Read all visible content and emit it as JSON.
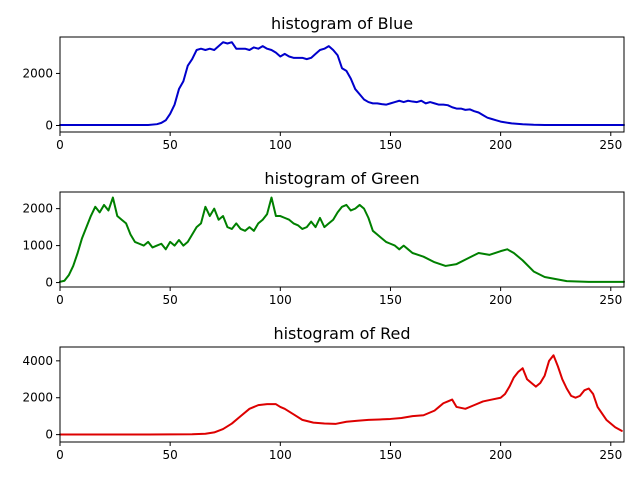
{
  "chart_data": [
    {
      "type": "line",
      "title": "histogram of Blue",
      "color": "#0000cc",
      "xlim": [
        0,
        256
      ],
      "ylim": [
        -250,
        3400
      ],
      "xticks": [
        0,
        50,
        100,
        150,
        200,
        250
      ],
      "yticks": [
        0,
        2000
      ],
      "x": [
        0,
        10,
        20,
        30,
        40,
        44,
        46,
        48,
        50,
        52,
        54,
        56,
        58,
        60,
        62,
        64,
        66,
        68,
        70,
        72,
        74,
        76,
        78,
        80,
        82,
        84,
        86,
        88,
        90,
        92,
        94,
        96,
        98,
        100,
        102,
        104,
        106,
        108,
        110,
        112,
        114,
        116,
        118,
        120,
        122,
        124,
        126,
        128,
        130,
        132,
        134,
        136,
        138,
        140,
        142,
        144,
        146,
        148,
        150,
        152,
        154,
        156,
        158,
        160,
        162,
        164,
        166,
        168,
        170,
        172,
        174,
        176,
        178,
        180,
        182,
        184,
        186,
        188,
        190,
        192,
        194,
        196,
        198,
        200,
        205,
        210,
        215,
        220,
        230,
        240,
        256
      ],
      "values": [
        20,
        20,
        20,
        20,
        20,
        50,
        100,
        200,
        450,
        800,
        1400,
        1700,
        2300,
        2550,
        2900,
        2950,
        2900,
        2950,
        2900,
        3050,
        3200,
        3150,
        3200,
        2950,
        2950,
        2950,
        2900,
        3000,
        2950,
        3050,
        2950,
        2900,
        2800,
        2650,
        2750,
        2650,
        2600,
        2600,
        2600,
        2550,
        2600,
        2750,
        2900,
        2950,
        3050,
        2900,
        2700,
        2200,
        2100,
        1800,
        1400,
        1200,
        1000,
        900,
        850,
        850,
        820,
        800,
        850,
        900,
        950,
        900,
        950,
        920,
        900,
        950,
        850,
        900,
        850,
        800,
        800,
        780,
        700,
        650,
        650,
        600,
        620,
        550,
        500,
        400,
        300,
        250,
        200,
        150,
        80,
        50,
        30,
        20,
        20,
        20,
        20
      ]
    },
    {
      "type": "line",
      "title": "histogram of Green",
      "color": "#008000",
      "xlim": [
        0,
        256
      ],
      "ylim": [
        -120,
        2450
      ],
      "xticks": [
        0,
        50,
        100,
        150,
        200,
        250
      ],
      "yticks": [
        0,
        1000,
        2000
      ],
      "x": [
        0,
        2,
        4,
        6,
        8,
        10,
        12,
        14,
        16,
        18,
        20,
        22,
        24,
        26,
        28,
        30,
        32,
        34,
        36,
        38,
        40,
        42,
        44,
        46,
        48,
        50,
        52,
        54,
        56,
        58,
        60,
        62,
        64,
        66,
        68,
        70,
        72,
        74,
        76,
        78,
        80,
        82,
        84,
        86,
        88,
        90,
        92,
        94,
        96,
        98,
        100,
        102,
        104,
        106,
        108,
        110,
        112,
        114,
        116,
        118,
        120,
        122,
        124,
        126,
        128,
        130,
        132,
        134,
        136,
        138,
        140,
        142,
        144,
        146,
        148,
        150,
        152,
        154,
        156,
        158,
        160,
        165,
        170,
        175,
        180,
        185,
        190,
        195,
        200,
        203,
        206,
        210,
        215,
        220,
        230,
        240,
        256
      ],
      "values": [
        20,
        50,
        200,
        450,
        800,
        1200,
        1500,
        1800,
        2050,
        1900,
        2100,
        1950,
        2300,
        1800,
        1700,
        1600,
        1300,
        1100,
        1050,
        1000,
        1100,
        950,
        1000,
        1050,
        900,
        1100,
        1000,
        1150,
        1000,
        1100,
        1300,
        1500,
        1600,
        2050,
        1800,
        2000,
        1700,
        1800,
        1500,
        1450,
        1600,
        1450,
        1400,
        1500,
        1400,
        1600,
        1700,
        1850,
        2300,
        1800,
        1800,
        1750,
        1700,
        1600,
        1550,
        1450,
        1500,
        1650,
        1500,
        1750,
        1500,
        1600,
        1700,
        1900,
        2050,
        2100,
        1950,
        2000,
        2100,
        2000,
        1750,
        1400,
        1300,
        1200,
        1100,
        1050,
        1000,
        900,
        1000,
        900,
        800,
        700,
        550,
        450,
        500,
        650,
        800,
        750,
        850,
        900,
        800,
        600,
        300,
        150,
        40,
        20,
        20
      ]
    },
    {
      "type": "line",
      "title": "histogram of Red",
      "color": "#dd0000",
      "xlim": [
        0,
        256
      ],
      "ylim": [
        -400,
        4750
      ],
      "xticks": [
        0,
        50,
        100,
        150,
        200,
        250
      ],
      "yticks": [
        0,
        2000,
        4000
      ],
      "x": [
        0,
        20,
        40,
        60,
        66,
        70,
        74,
        78,
        82,
        86,
        90,
        94,
        98,
        100,
        102,
        106,
        110,
        115,
        120,
        125,
        130,
        135,
        140,
        145,
        150,
        155,
        160,
        165,
        170,
        172,
        174,
        176,
        178,
        180,
        184,
        188,
        192,
        196,
        200,
        202,
        204,
        206,
        208,
        210,
        212,
        214,
        216,
        218,
        220,
        222,
        224,
        226,
        228,
        230,
        232,
        234,
        236,
        238,
        240,
        242,
        244,
        248,
        252,
        255
      ],
      "values": [
        10,
        10,
        10,
        20,
        50,
        120,
        300,
        600,
        1000,
        1400,
        1600,
        1650,
        1650,
        1500,
        1400,
        1100,
        800,
        650,
        600,
        580,
        700,
        750,
        800,
        820,
        850,
        900,
        1000,
        1050,
        1300,
        1500,
        1700,
        1800,
        1900,
        1500,
        1400,
        1600,
        1800,
        1900,
        2000,
        2200,
        2600,
        3100,
        3400,
        3600,
        3000,
        2800,
        2600,
        2800,
        3200,
        4000,
        4300,
        3700,
        3000,
        2500,
        2100,
        2000,
        2100,
        2400,
        2500,
        2200,
        1500,
        800,
        400,
        200
      ]
    }
  ]
}
